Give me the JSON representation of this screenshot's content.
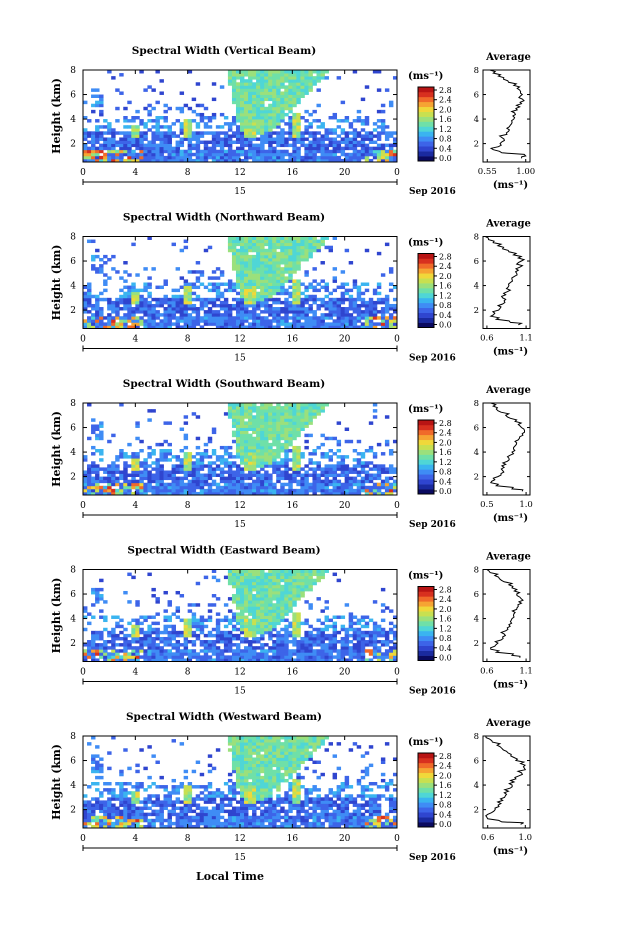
{
  "figure": {
    "xlabel": "Local Time",
    "date_label": "Sep 2016",
    "day_label": "15",
    "units_label": "(ms⁻¹)",
    "ylabel": "Height (km)",
    "avg_title": "Average",
    "colorbar_ticks": [
      "0.0",
      "0.4",
      "0.8",
      "1.2",
      "1.6",
      "2.0",
      "2.4",
      "2.8"
    ],
    "colormap": [
      "#0a0a60",
      "#1a2aa0",
      "#2f45cf",
      "#3d64e8",
      "#3f8cf5",
      "#3ab4f0",
      "#4fd6d6",
      "#6fe0a8",
      "#9be07c",
      "#c8e050",
      "#f0d83a",
      "#f6a433",
      "#f06a2a",
      "#d8301f",
      "#b81414"
    ]
  },
  "chart_data": [
    {
      "type": "heatmap",
      "title": "Spectral Width (Vertical Beam)",
      "x_ticks": [
        "0",
        "4",
        "8",
        "12",
        "16",
        "20",
        "0"
      ],
      "y_ticks": [
        "2",
        "4",
        "6",
        "8"
      ],
      "xlim": [
        0,
        24
      ],
      "ylim": [
        0.5,
        8
      ],
      "average": {
        "title": "Average",
        "xlabel": "(ms⁻¹)",
        "x_ticks": [
          "0.55",
          "1.00"
        ],
        "y_ticks": [
          "2",
          "4",
          "6",
          "8"
        ],
        "xlim": [
          0.5,
          1.05
        ],
        "x": [
          0.95,
          1.0,
          0.72,
          0.62,
          0.68,
          0.7,
          0.75,
          0.72,
          0.78,
          0.8,
          0.78,
          0.82,
          0.84,
          0.86,
          0.85,
          0.87,
          0.9,
          0.93,
          0.95,
          0.98,
          0.92,
          0.96,
          0.94,
          0.9,
          0.86,
          0.8,
          0.74,
          0.68,
          0.62,
          0.58
        ],
        "y": [
          0.8,
          1.0,
          1.25,
          1.5,
          1.75,
          2.0,
          2.25,
          2.5,
          2.75,
          3.0,
          3.25,
          3.5,
          3.75,
          4.0,
          4.25,
          4.5,
          4.75,
          5.0,
          5.25,
          5.5,
          5.75,
          6.0,
          6.25,
          6.5,
          6.75,
          7.0,
          7.25,
          7.5,
          7.75,
          8.0
        ]
      }
    },
    {
      "type": "heatmap",
      "title": "Spectral Width (Northward Beam)",
      "x_ticks": [
        "0",
        "4",
        "8",
        "12",
        "16",
        "20",
        "0"
      ],
      "y_ticks": [
        "2",
        "4",
        "6",
        "8"
      ],
      "xlim": [
        0,
        24
      ],
      "ylim": [
        0.5,
        8
      ],
      "average": {
        "title": "Average",
        "xlabel": "(ms⁻¹)",
        "x_ticks": [
          "0.6",
          "1.1"
        ],
        "y_ticks": [
          "2",
          "4",
          "6",
          "8"
        ],
        "xlim": [
          0.55,
          1.15
        ],
        "x": [
          1.0,
          0.9,
          0.72,
          0.65,
          0.7,
          0.75,
          0.78,
          0.8,
          0.82,
          0.8,
          0.84,
          0.86,
          0.85,
          0.88,
          0.9,
          0.92,
          0.95,
          0.98,
          1.0,
          1.02,
          0.98,
          1.04,
          1.0,
          0.94,
          0.88,
          0.8,
          0.74,
          0.68,
          0.62,
          0.58
        ],
        "y": [
          0.8,
          1.0,
          1.25,
          1.5,
          1.75,
          2.0,
          2.25,
          2.5,
          2.75,
          3.0,
          3.25,
          3.5,
          3.75,
          4.0,
          4.25,
          4.5,
          4.75,
          5.0,
          5.25,
          5.5,
          5.75,
          6.0,
          6.25,
          6.5,
          6.75,
          7.0,
          7.25,
          7.5,
          7.75,
          8.0
        ]
      }
    },
    {
      "type": "heatmap",
      "title": "Spectral Width (Southward Beam)",
      "x_ticks": [
        "0",
        "4",
        "8",
        "12",
        "16",
        "20",
        "0"
      ],
      "y_ticks": [
        "2",
        "4",
        "6",
        "8"
      ],
      "xlim": [
        0,
        24
      ],
      "ylim": [
        0.5,
        8
      ],
      "average": {
        "title": "Average",
        "xlabel": "(ms⁻¹)",
        "x_ticks": [
          "0.5",
          "1.0"
        ],
        "y_ticks": [
          "2",
          "4",
          "6",
          "8"
        ],
        "xlim": [
          0.45,
          1.05
        ],
        "x": [
          0.95,
          0.82,
          0.62,
          0.55,
          0.6,
          0.64,
          0.68,
          0.7,
          0.72,
          0.74,
          0.76,
          0.78,
          0.8,
          0.82,
          0.84,
          0.86,
          0.88,
          0.9,
          0.92,
          0.95,
          0.98,
          0.94,
          0.9,
          0.86,
          0.8,
          0.74,
          0.68,
          0.62,
          0.58,
          0.55
        ],
        "y": [
          0.8,
          1.0,
          1.25,
          1.5,
          1.75,
          2.0,
          2.25,
          2.5,
          2.75,
          3.0,
          3.25,
          3.5,
          3.75,
          4.0,
          4.25,
          4.5,
          4.75,
          5.0,
          5.25,
          5.5,
          5.75,
          6.0,
          6.25,
          6.5,
          6.75,
          7.0,
          7.25,
          7.5,
          7.75,
          8.0
        ]
      }
    },
    {
      "type": "heatmap",
      "title": "Spectral Width (Eastward Beam)",
      "x_ticks": [
        "0",
        "4",
        "8",
        "12",
        "16",
        "20",
        "0"
      ],
      "y_ticks": [
        "2",
        "4",
        "6",
        "8"
      ],
      "xlim": [
        0,
        24
      ],
      "ylim": [
        0.5,
        8
      ],
      "average": {
        "title": "Average",
        "xlabel": "(ms⁻¹)",
        "x_ticks": [
          "0.6",
          "1.1"
        ],
        "y_ticks": [
          "2",
          "4",
          "6",
          "8"
        ],
        "xlim": [
          0.55,
          1.15
        ],
        "x": [
          1.02,
          0.92,
          0.72,
          0.65,
          0.7,
          0.74,
          0.78,
          0.8,
          0.82,
          0.84,
          0.86,
          0.88,
          0.9,
          0.92,
          0.94,
          0.96,
          0.98,
          1.0,
          1.04,
          1.06,
          1.02,
          0.98,
          0.95,
          0.92,
          0.88,
          0.82,
          0.76,
          0.7,
          0.64,
          0.6
        ],
        "y": [
          0.8,
          1.0,
          1.25,
          1.5,
          1.75,
          2.0,
          2.25,
          2.5,
          2.75,
          3.0,
          3.25,
          3.5,
          3.75,
          4.0,
          4.25,
          4.5,
          4.75,
          5.0,
          5.25,
          5.5,
          5.75,
          6.0,
          6.25,
          6.5,
          6.75,
          7.0,
          7.25,
          7.5,
          7.75,
          8.0
        ]
      }
    },
    {
      "type": "heatmap",
      "title": "Spectral Width (Westward Beam)",
      "x_ticks": [
        "0",
        "4",
        "8",
        "12",
        "16",
        "20",
        "0"
      ],
      "y_ticks": [
        "2",
        "4",
        "6",
        "8"
      ],
      "xlim": [
        0,
        24
      ],
      "ylim": [
        0.5,
        8
      ],
      "average": {
        "title": "Average",
        "xlabel": "(ms⁻¹)",
        "x_ticks": [
          "0.6",
          "1.0"
        ],
        "y_ticks": [
          "2",
          "4",
          "6",
          "8"
        ],
        "xlim": [
          0.55,
          1.05
        ],
        "x": [
          0.95,
          0.75,
          0.6,
          0.58,
          0.64,
          0.68,
          0.72,
          0.74,
          0.76,
          0.78,
          0.8,
          0.82,
          0.84,
          0.86,
          0.88,
          0.9,
          0.93,
          0.96,
          1.0,
          0.98,
          0.95,
          0.9,
          0.88,
          0.85,
          0.8,
          0.75,
          0.7,
          0.65,
          0.62,
          0.58
        ],
        "y": [
          0.8,
          1.0,
          1.25,
          1.5,
          1.75,
          2.0,
          2.25,
          2.5,
          2.75,
          3.0,
          3.25,
          3.5,
          3.75,
          4.0,
          4.25,
          4.5,
          4.75,
          5.0,
          5.25,
          5.5,
          5.75,
          6.0,
          6.25,
          6.5,
          6.75,
          7.0,
          7.25,
          7.5,
          7.75,
          8.0
        ]
      }
    }
  ]
}
